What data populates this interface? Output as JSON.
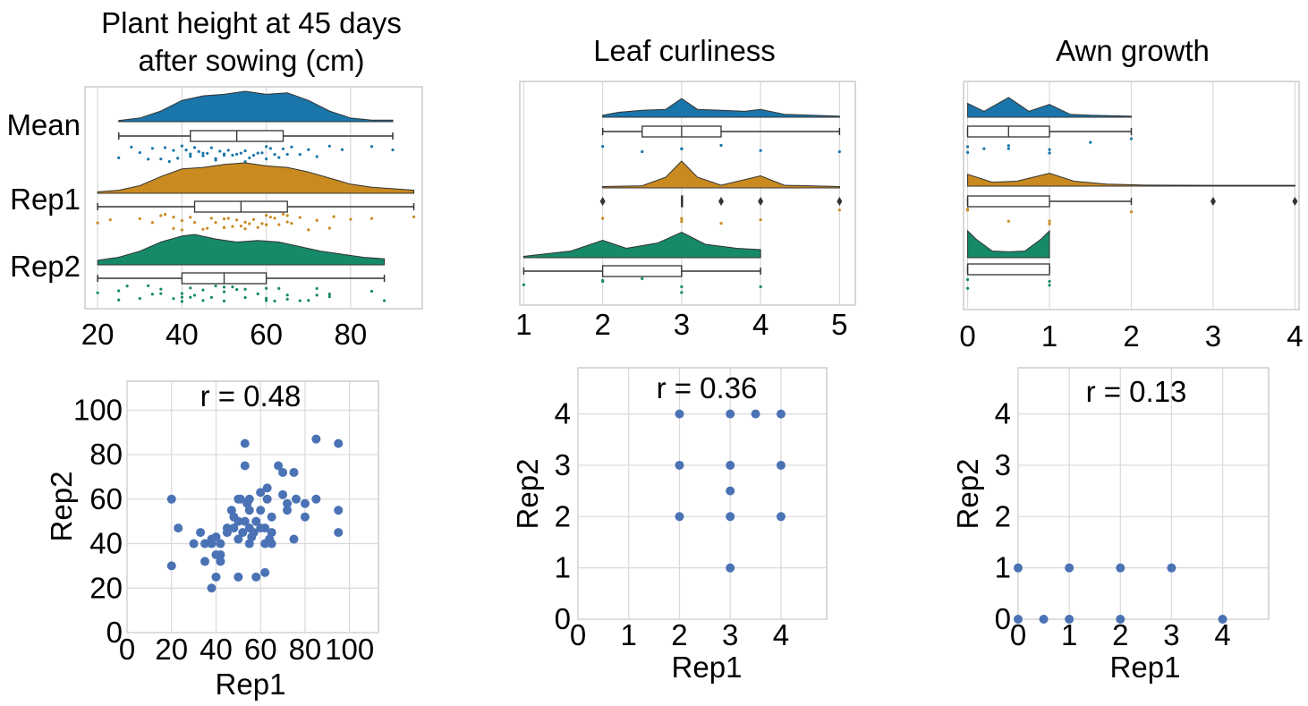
{
  "figure": {
    "colors": {
      "mean": "#1a75aa",
      "rep1": "#c98a20",
      "rep2": "#168968",
      "scatter": "#4a72b5",
      "grid": "#d9d9d9",
      "box": "#333333"
    }
  },
  "chart_data": [
    {
      "id": "raincloud-height",
      "type": "raincloud",
      "title": "Plant height at 45 days after sowing (cm)",
      "title_lines": [
        "Plant height at 45 days",
        "after sowing (cm)"
      ],
      "xticks": [
        20,
        40,
        60,
        80
      ],
      "xlim": [
        17,
        97
      ],
      "grid": true,
      "series": [
        {
          "name": "Mean",
          "color_key": "mean",
          "whisker": [
            25,
            90
          ],
          "box": [
            42,
            53,
            64
          ],
          "density": [
            [
              25,
              0.04
            ],
            [
              30,
              0.12
            ],
            [
              35,
              0.35
            ],
            [
              40,
              0.7
            ],
            [
              45,
              0.85
            ],
            [
              50,
              0.9
            ],
            [
              55,
              1.0
            ],
            [
              60,
              0.9
            ],
            [
              65,
              0.95
            ],
            [
              70,
              0.7
            ],
            [
              75,
              0.35
            ],
            [
              80,
              0.12
            ],
            [
              85,
              0.05
            ],
            [
              90,
              0.05
            ]
          ],
          "points": [
            25,
            28,
            30,
            32,
            33,
            35,
            36,
            37,
            38,
            39,
            40,
            41,
            42,
            42,
            43,
            44,
            45,
            45,
            46,
            47,
            48,
            48,
            49,
            50,
            50,
            51,
            52,
            53,
            54,
            55,
            55,
            56,
            57,
            58,
            59,
            60,
            60,
            61,
            62,
            63,
            64,
            65,
            66,
            68,
            70,
            72,
            75,
            78,
            85,
            90
          ]
        },
        {
          "name": "Rep1",
          "color_key": "rep1",
          "whisker": [
            20,
            95
          ],
          "box": [
            43,
            54,
            65
          ],
          "density": [
            [
              20,
              0.05
            ],
            [
              25,
              0.1
            ],
            [
              30,
              0.25
            ],
            [
              35,
              0.55
            ],
            [
              40,
              0.8
            ],
            [
              45,
              0.85
            ],
            [
              50,
              0.95
            ],
            [
              55,
              1.0
            ],
            [
              60,
              0.9
            ],
            [
              65,
              0.85
            ],
            [
              70,
              0.7
            ],
            [
              75,
              0.5
            ],
            [
              80,
              0.3
            ],
            [
              85,
              0.2
            ],
            [
              90,
              0.15
            ],
            [
              95,
              0.1
            ]
          ],
          "points": [
            20,
            23,
            30,
            33,
            35,
            36,
            38,
            38,
            40,
            40,
            42,
            43,
            45,
            46,
            47,
            48,
            50,
            50,
            50,
            51,
            52,
            53,
            54,
            55,
            55,
            56,
            57,
            58,
            59,
            60,
            60,
            61,
            62,
            63,
            64,
            65,
            65,
            66,
            68,
            70,
            72,
            75,
            76,
            80,
            85,
            95
          ]
        },
        {
          "name": "Rep2",
          "color_key": "rep2",
          "whisker": [
            20,
            88
          ],
          "box": [
            40,
            50,
            60
          ],
          "density": [
            [
              20,
              0.15
            ],
            [
              25,
              0.25
            ],
            [
              30,
              0.45
            ],
            [
              35,
              0.75
            ],
            [
              40,
              0.95
            ],
            [
              43,
              1.0
            ],
            [
              48,
              0.85
            ],
            [
              53,
              0.75
            ],
            [
              58,
              0.8
            ],
            [
              63,
              0.75
            ],
            [
              68,
              0.6
            ],
            [
              73,
              0.45
            ],
            [
              78,
              0.35
            ],
            [
              83,
              0.25
            ],
            [
              88,
              0.2
            ]
          ],
          "points": [
            20,
            25,
            25,
            27,
            30,
            32,
            33,
            35,
            35,
            38,
            40,
            40,
            40,
            42,
            42,
            43,
            45,
            45,
            47,
            48,
            50,
            50,
            50,
            52,
            53,
            55,
            55,
            58,
            60,
            60,
            60,
            62,
            63,
            65,
            65,
            68,
            70,
            72,
            72,
            75,
            75,
            85,
            88
          ]
        }
      ]
    },
    {
      "id": "raincloud-leaf",
      "type": "raincloud",
      "title": "Leaf curliness",
      "xticks": [
        1,
        2,
        3,
        4,
        5
      ],
      "xlim": [
        0.95,
        5.2
      ],
      "grid": true,
      "series": [
        {
          "name": "Mean",
          "color_key": "mean",
          "whisker": [
            2,
            5
          ],
          "box": [
            2.5,
            3,
            3.5
          ],
          "density": [
            [
              2,
              0.1
            ],
            [
              2.2,
              0.25
            ],
            [
              2.5,
              0.35
            ],
            [
              2.8,
              0.4
            ],
            [
              3,
              0.95
            ],
            [
              3.2,
              0.4
            ],
            [
              3.5,
              0.35
            ],
            [
              3.8,
              0.3
            ],
            [
              4,
              0.4
            ],
            [
              4.3,
              0.15
            ],
            [
              5,
              0.05
            ]
          ],
          "points": [
            2,
            2.5,
            3,
            3,
            3.5,
            4,
            5
          ],
          "outliers": []
        },
        {
          "name": "Rep1",
          "color_key": "rep1",
          "whisker": [
            3,
            3
          ],
          "box": [
            3,
            3,
            3
          ],
          "density": [
            [
              2,
              0.05
            ],
            [
              2.5,
              0.08
            ],
            [
              2.8,
              0.4
            ],
            [
              3,
              1.0
            ],
            [
              3.2,
              0.4
            ],
            [
              3.5,
              0.1
            ],
            [
              4,
              0.45
            ],
            [
              4.3,
              0.1
            ],
            [
              5,
              0.05
            ]
          ],
          "points": [
            2,
            3,
            3,
            3,
            3.5,
            4,
            5
          ],
          "outliers": [
            2,
            3.5,
            4,
            5
          ]
        },
        {
          "name": "Rep2",
          "color_key": "rep2",
          "whisker": [
            1,
            4
          ],
          "box": [
            2,
            3,
            3
          ],
          "density": [
            [
              1,
              0.05
            ],
            [
              1.6,
              0.25
            ],
            [
              2,
              0.65
            ],
            [
              2.3,
              0.35
            ],
            [
              2.7,
              0.55
            ],
            [
              3,
              0.95
            ],
            [
              3.3,
              0.5
            ],
            [
              3.7,
              0.35
            ],
            [
              4,
              0.3
            ]
          ],
          "points": [
            1,
            2,
            2,
            2.5,
            3,
            3,
            4
          ],
          "outliers": []
        }
      ]
    },
    {
      "id": "raincloud-awn",
      "type": "raincloud",
      "title": "Awn growth",
      "xticks": [
        0,
        1,
        2,
        3,
        4
      ],
      "xlim": [
        -0.05,
        4.05
      ],
      "grid": true,
      "series": [
        {
          "name": "Mean",
          "color_key": "mean",
          "whisker": [
            0,
            2
          ],
          "box": [
            0,
            0.5,
            1
          ],
          "density": [
            [
              0,
              0.7
            ],
            [
              0.2,
              0.3
            ],
            [
              0.5,
              1.0
            ],
            [
              0.75,
              0.3
            ],
            [
              1,
              0.65
            ],
            [
              1.25,
              0.15
            ],
            [
              1.5,
              0.1
            ],
            [
              2,
              0.05
            ]
          ],
          "points": [
            0,
            0,
            0.2,
            0.5,
            0.5,
            1,
            1,
            1.5,
            2
          ],
          "outliers": []
        },
        {
          "name": "Rep1",
          "color_key": "rep1",
          "whisker": [
            0,
            2
          ],
          "box": [
            0,
            0,
            1
          ],
          "density": [
            [
              0,
              0.6
            ],
            [
              0.3,
              0.2
            ],
            [
              0.6,
              0.25
            ],
            [
              1,
              0.65
            ],
            [
              1.3,
              0.25
            ],
            [
              1.7,
              0.1
            ],
            [
              2.2,
              0.05
            ],
            [
              3,
              0.04
            ],
            [
              4,
              0.04
            ]
          ],
          "points": [
            0,
            0,
            0.5,
            1,
            1,
            2
          ],
          "outliers": [
            3,
            4
          ]
        },
        {
          "name": "Rep2",
          "color_key": "rep2",
          "whisker": [
            0,
            1
          ],
          "box": [
            0,
            0,
            1
          ],
          "density": [
            [
              0,
              1.0
            ],
            [
              0.1,
              0.7
            ],
            [
              0.3,
              0.25
            ],
            [
              0.5,
              0.22
            ],
            [
              0.7,
              0.25
            ],
            [
              0.9,
              0.7
            ],
            [
              1,
              1.0
            ]
          ],
          "points": [
            0,
            0,
            1,
            1
          ],
          "outliers": []
        }
      ]
    },
    {
      "id": "scatter-height",
      "type": "scatter",
      "annotation": "r = 0.48",
      "xlabel": "Rep1",
      "ylabel": "Rep2",
      "xlim": [
        0,
        113
      ],
      "ylim": [
        0,
        113
      ],
      "xticks": [
        0,
        20,
        40,
        60,
        80,
        100
      ],
      "yticks": [
        0,
        20,
        40,
        60,
        80,
        100
      ],
      "grid": true,
      "x": [
        20,
        20,
        23,
        30,
        33,
        35,
        35,
        38,
        38,
        38,
        40,
        40,
        40,
        42,
        42,
        42,
        45,
        45,
        47,
        48,
        48,
        50,
        50,
        50,
        50,
        51,
        52,
        53,
        53,
        53,
        54,
        55,
        55,
        55,
        55,
        56,
        57,
        58,
        58,
        60,
        60,
        60,
        62,
        62,
        62,
        63,
        63,
        64,
        65,
        65,
        65,
        68,
        70,
        70,
        72,
        72,
        75,
        75,
        76,
        80,
        80,
        85,
        85,
        95,
        95,
        95
      ],
      "y": [
        30,
        60,
        47,
        40,
        45,
        32,
        40,
        20,
        42,
        40,
        35,
        43,
        25,
        32,
        35,
        40,
        45,
        47,
        55,
        52,
        47,
        60,
        50,
        42,
        25,
        60,
        45,
        85,
        75,
        50,
        58,
        47,
        55,
        60,
        40,
        43,
        45,
        50,
        25,
        63,
        55,
        47,
        27,
        40,
        47,
        65,
        60,
        42,
        45,
        40,
        52,
        75,
        72,
        62,
        55,
        58,
        42,
        72,
        60,
        52,
        58,
        87,
        60,
        85,
        55,
        45
      ]
    },
    {
      "id": "scatter-leaf",
      "type": "scatter",
      "annotation": "r = 0.36",
      "xlabel": "Rep1",
      "ylabel": "Rep2",
      "xlim": [
        0,
        4.9
      ],
      "ylim": [
        0,
        4.9
      ],
      "xticks": [
        0,
        1,
        2,
        3,
        4
      ],
      "yticks": [
        0,
        1,
        2,
        3,
        4
      ],
      "grid": true,
      "x": [
        2,
        2,
        2,
        3,
        3,
        3,
        3,
        3,
        3.5,
        4,
        4,
        4
      ],
      "y": [
        4,
        3,
        2,
        1,
        2,
        2.5,
        3,
        4,
        4,
        4,
        3,
        2
      ]
    },
    {
      "id": "scatter-awn",
      "type": "scatter",
      "annotation": "r = 0.13",
      "xlabel": "Rep1",
      "ylabel": "Rep2",
      "xlim": [
        0,
        4.9
      ],
      "ylim": [
        0,
        4.9
      ],
      "xticks": [
        0,
        1,
        2,
        3,
        4
      ],
      "yticks": [
        0,
        1,
        2,
        3,
        4
      ],
      "grid": true,
      "x": [
        0,
        0,
        0.5,
        1,
        1,
        2,
        2,
        3,
        4
      ],
      "y": [
        0,
        1,
        0,
        0,
        1,
        1,
        0,
        1,
        0
      ]
    }
  ]
}
